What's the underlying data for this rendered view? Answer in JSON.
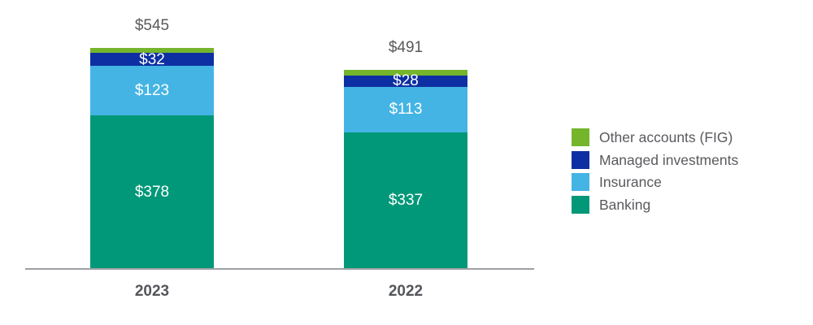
{
  "chart_data": {
    "type": "bar",
    "stacked": true,
    "orientation": "vertical",
    "categories": [
      "2023",
      "2022"
    ],
    "series": [
      {
        "name": "Banking",
        "color": "#009878",
        "values": [
          378,
          337
        ],
        "labels": [
          "$378",
          "$337"
        ]
      },
      {
        "name": "Insurance",
        "color": "#44B4E4",
        "values": [
          123,
          113
        ],
        "labels": [
          "$123",
          "$113"
        ]
      },
      {
        "name": "Managed investments",
        "color": "#0E2FA3",
        "values": [
          32,
          28
        ],
        "labels": [
          "$32",
          "$28"
        ]
      },
      {
        "name": "Other accounts (FIG)",
        "color": "#74B52C",
        "values": [
          12,
          13
        ],
        "labels": [
          null,
          null
        ]
      }
    ],
    "totals": {
      "values": [
        545,
        491
      ],
      "labels": [
        "$545",
        "$491"
      ]
    },
    "legend": {
      "position": "right",
      "order": [
        "Other accounts (FIG)",
        "Managed investments",
        "Insurance",
        "Banking"
      ]
    },
    "axes": {
      "x_tick_labels": [
        "2023",
        "2022"
      ],
      "y_axis_visible": false,
      "gridlines": false,
      "baseline_color": "#9EA0A3"
    },
    "title": "",
    "xlabel": "",
    "ylabel": ""
  }
}
